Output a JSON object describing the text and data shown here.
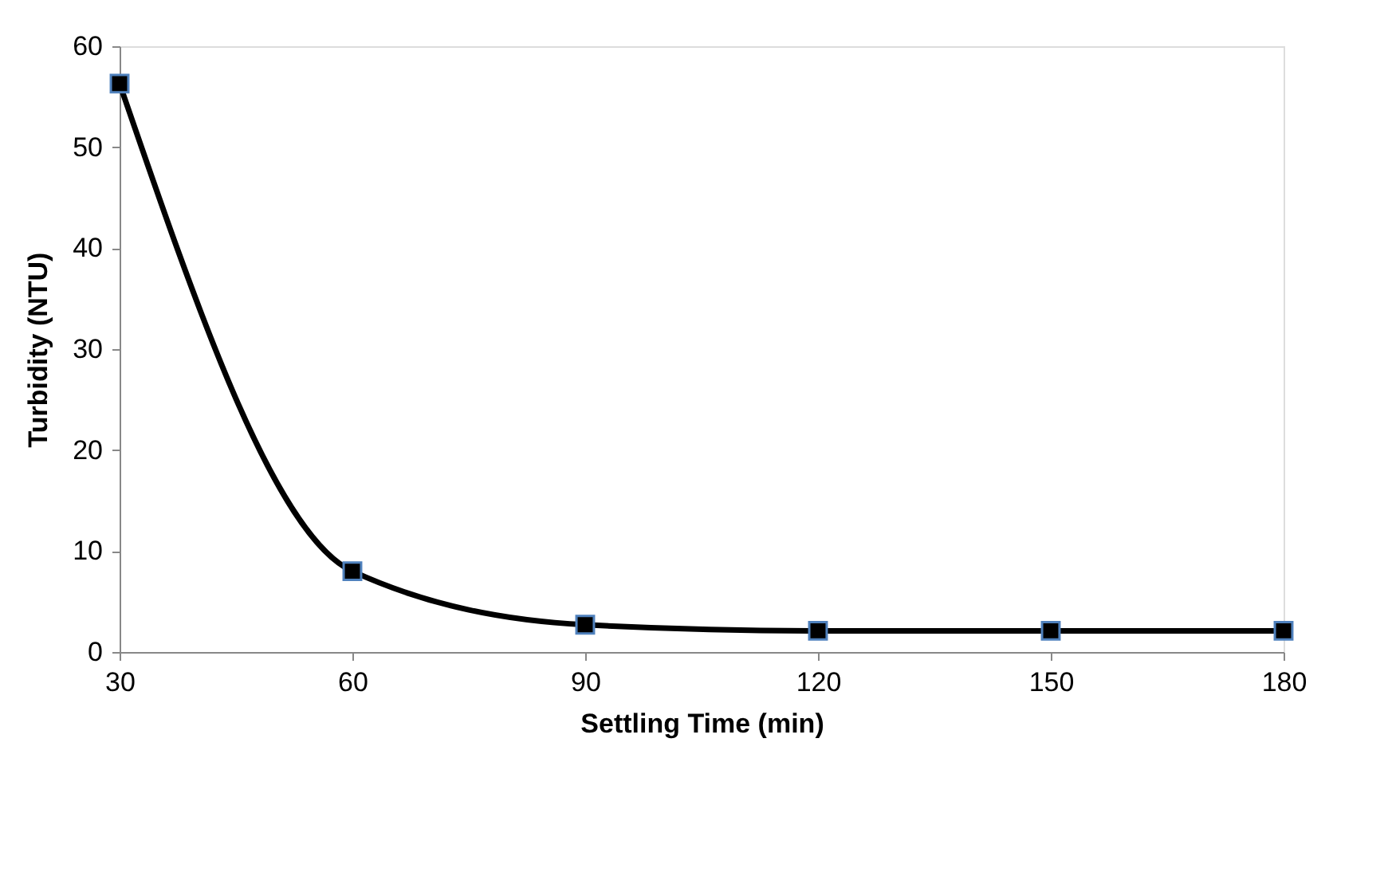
{
  "chart_data": {
    "type": "line",
    "xlabel": "Settling Time (min)",
    "ylabel": "Turbidity (NTU)",
    "x": [
      30,
      60,
      90,
      120,
      150,
      180
    ],
    "series": [
      {
        "color": "#000000",
        "values": [
          56.3,
          8.0,
          2.7,
          2.1,
          2.1,
          2.1
        ]
      }
    ],
    "xlim": [
      30,
      180
    ],
    "xticks": [
      30,
      60,
      90,
      120,
      150,
      180
    ],
    "ylim": [
      0,
      60
    ],
    "yticks": [
      0,
      10,
      20,
      30,
      40,
      50,
      60
    ],
    "marker": "square",
    "line_style": "solid",
    "grid": false
  }
}
